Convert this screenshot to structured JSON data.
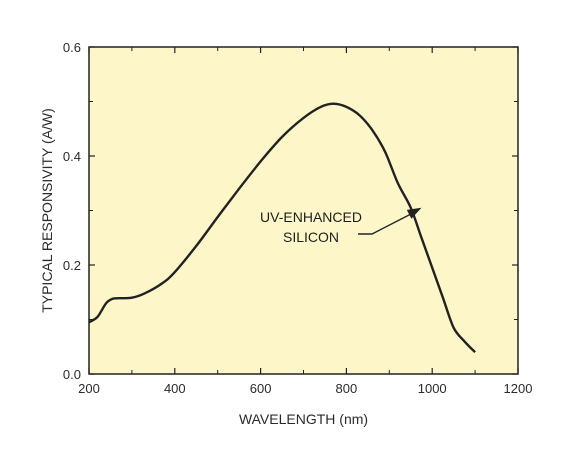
{
  "chart_data": {
    "type": "line",
    "title": "",
    "xlabel": "WAVELENGTH (nm)",
    "ylabel": "TYPICAL RESPONSIVITY (A/W)",
    "xlim": [
      200,
      1200
    ],
    "ylim": [
      0.0,
      0.6
    ],
    "x_ticks": [
      200,
      400,
      600,
      800,
      1000,
      1200
    ],
    "y_ticks": [
      0.0,
      0.2,
      0.4,
      0.6
    ],
    "x_tick_labels": [
      "200",
      "400",
      "600",
      "800",
      "1000",
      "1200"
    ],
    "y_tick_labels": [
      "0.0",
      "0.2",
      "0.4",
      "0.6"
    ],
    "grid": false,
    "plot_background": "#fdf6c8",
    "line_color": "#222222",
    "series": [
      {
        "x": [
          200,
          220,
          240,
          255,
          270,
          300,
          330,
          370,
          400,
          450,
          500,
          550,
          600,
          650,
          700,
          740,
          770,
          800,
          830,
          860,
          890,
          920,
          950,
          975,
          1000,
          1025,
          1050,
          1075,
          1100
        ],
        "values": [
          0.095,
          0.105,
          0.13,
          0.138,
          0.139,
          0.14,
          0.148,
          0.166,
          0.187,
          0.235,
          0.288,
          0.34,
          0.39,
          0.435,
          0.47,
          0.49,
          0.496,
          0.49,
          0.475,
          0.448,
          0.408,
          0.35,
          0.305,
          0.25,
          0.195,
          0.14,
          0.085,
          0.06,
          0.04
        ]
      }
    ],
    "annotation": {
      "lines": [
        "UV-ENHANCED",
        "SILICON"
      ],
      "arrow_target": {
        "x": 975,
        "y": 0.305
      }
    }
  }
}
